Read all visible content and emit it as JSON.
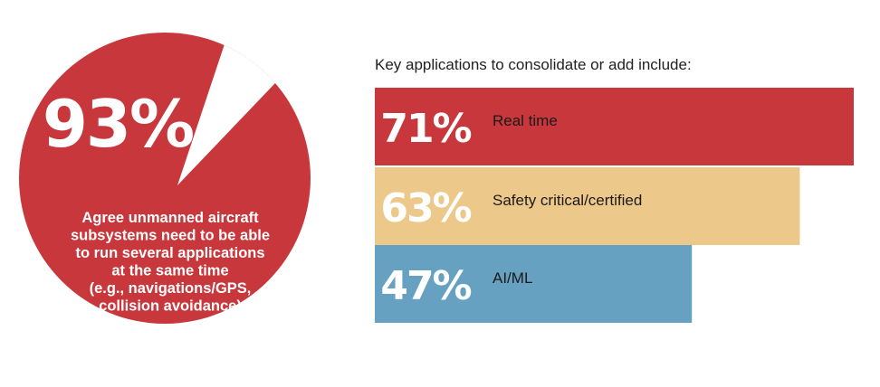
{
  "chart_data": [
    {
      "type": "pie",
      "value_percent": 93,
      "value_label": "93%",
      "caption_lines": [
        "Agree unmanned aircraft",
        "subsystems need to be able",
        "to run several applications",
        "at the same time",
        "(e.g., navigations/GPS,",
        "collision avoidance)"
      ],
      "colors": {
        "filled": "#c8373b",
        "remainder": "#ffffff"
      }
    },
    {
      "type": "bar",
      "title": "Key applications to consolidate or add include:",
      "categories": [
        "Real time",
        "Safety critical/certified",
        "AI/ML"
      ],
      "values": [
        71,
        63,
        47
      ],
      "value_labels": [
        "71%",
        "63%",
        "47%"
      ],
      "colors": [
        "#c8373b",
        "#ecc98a",
        "#66a1c1"
      ]
    }
  ]
}
